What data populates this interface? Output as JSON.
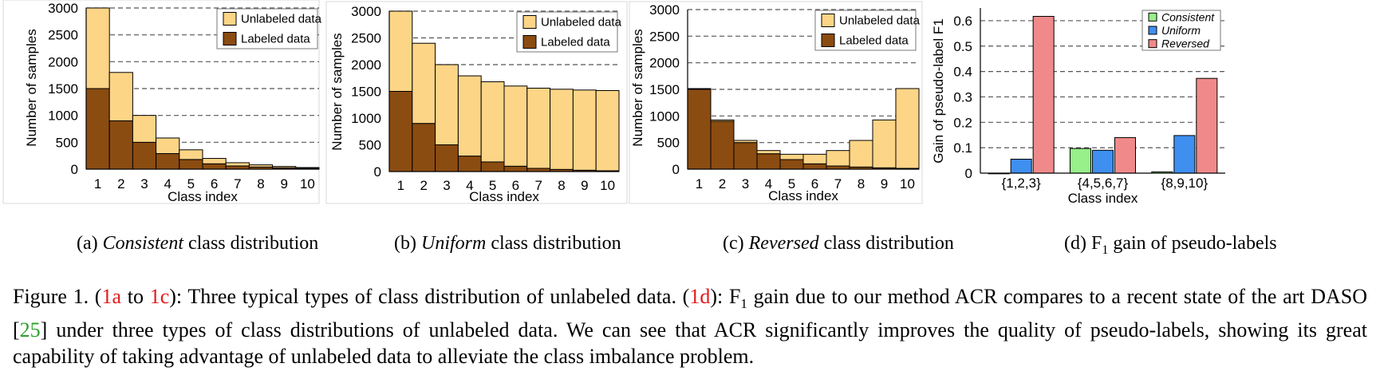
{
  "chart_data": [
    {
      "id": "a",
      "type": "bar",
      "stacked": true,
      "categories": [
        "1",
        "2",
        "3",
        "4",
        "5",
        "6",
        "7",
        "8",
        "9",
        "10"
      ],
      "series": [
        {
          "name": "Labeled data",
          "values": [
            1500,
            900,
            500,
            290,
            180,
            100,
            60,
            40,
            25,
            15
          ]
        },
        {
          "name": "Unlabeled data",
          "values": [
            1500,
            900,
            500,
            290,
            180,
            100,
            60,
            40,
            25,
            15
          ]
        }
      ],
      "xlabel": "Class index",
      "ylabel": "Number of samples",
      "ylim": [
        0,
        3000
      ],
      "yticks": [
        0,
        500,
        1000,
        1500,
        2000,
        2500,
        3000
      ],
      "grid": true,
      "legend": "top-right",
      "colors": {
        "Labeled data": "#8b4c11",
        "Unlabeled data": "#fdd587"
      },
      "caption_label": "(a)",
      "caption_italic": "Consistent",
      "caption_rest": "class distribution"
    },
    {
      "id": "b",
      "type": "bar",
      "stacked": true,
      "categories": [
        "1",
        "2",
        "3",
        "4",
        "5",
        "6",
        "7",
        "8",
        "9",
        "10"
      ],
      "series": [
        {
          "name": "Labeled data",
          "values": [
            1500,
            900,
            500,
            290,
            180,
            100,
            60,
            40,
            25,
            15
          ]
        },
        {
          "name": "Unlabeled data",
          "values": [
            1500,
            1500,
            1500,
            1500,
            1500,
            1500,
            1500,
            1500,
            1500,
            1500
          ]
        }
      ],
      "xlabel": "Class index",
      "ylabel": "Number of samples",
      "ylim": [
        0,
        3000
      ],
      "yticks": [
        0,
        500,
        1000,
        1500,
        2000,
        2500,
        3000
      ],
      "grid": true,
      "legend": "top-right",
      "colors": {
        "Labeled data": "#8b4c11",
        "Unlabeled data": "#fdd587"
      },
      "caption_label": "(b)",
      "caption_italic": "Uniform",
      "caption_rest": "class distribution"
    },
    {
      "id": "c",
      "type": "bar",
      "stacked": true,
      "categories": [
        "1",
        "2",
        "3",
        "4",
        "5",
        "6",
        "7",
        "8",
        "9",
        "10"
      ],
      "series": [
        {
          "name": "Labeled data",
          "values": [
            1500,
            900,
            500,
            290,
            180,
            100,
            60,
            40,
            25,
            15
          ]
        },
        {
          "name": "Unlabeled data",
          "values": [
            15,
            25,
            40,
            60,
            100,
            180,
            290,
            500,
            900,
            1500
          ]
        }
      ],
      "xlabel": "Class index",
      "ylabel": "Number of samples",
      "ylim": [
        0,
        3000
      ],
      "yticks": [
        0,
        500,
        1000,
        1500,
        2000,
        2500,
        3000
      ],
      "grid": true,
      "legend": "top-right",
      "colors": {
        "Labeled data": "#8b4c11",
        "Unlabeled data": "#fdd587"
      },
      "caption_label": "(c)",
      "caption_italic": "Reversed",
      "caption_rest": "class distribution"
    },
    {
      "id": "d",
      "type": "bar",
      "stacked": false,
      "categories": [
        "{1,2,3}",
        "{4,5,6,7}",
        "{8,9,10}"
      ],
      "series": [
        {
          "name": "Consistent",
          "values": [
            0.0,
            0.097,
            0.005
          ]
        },
        {
          "name": "Uniform",
          "values": [
            0.055,
            0.09,
            0.148
          ]
        },
        {
          "name": "Reversed",
          "values": [
            0.617,
            0.14,
            0.373
          ]
        }
      ],
      "xlabel": "Class index",
      "ylabel": "Gain of pseudo-label F1",
      "ylim": [
        0,
        0.65
      ],
      "yticks": [
        0,
        0.1,
        0.2,
        0.3,
        0.4,
        0.5,
        0.6
      ],
      "ytick_labels": [
        "0",
        "0.1",
        "0.2",
        "0.3",
        "0.4",
        "0.5",
        "0.6"
      ],
      "grid": true,
      "legend": "top-right",
      "colors": {
        "Consistent": "#98f08a",
        "Uniform": "#3f8ff0",
        "Reversed": "#f08a8a"
      },
      "caption_label": "(d) F",
      "caption_sub": "1",
      "caption_rest": "gain of pseudo-labels"
    }
  ],
  "figure_caption": {
    "part1": "Figure 1. (",
    "ref1": "1a",
    "part2": " to ",
    "ref2": "1c",
    "part3": "): Three typical types of class distribution of unlabeled data. (",
    "ref3": "1d",
    "part4": "): F",
    "sub": "1",
    "part5": " gain due to our method ACR compares to a recent state of the art DASO [",
    "ref4": "25",
    "part6": "] under three types of class distributions of unlabeled data. We can see that ACR significantly improves the quality of pseudo-labels, showing its great capability of taking advantage of unlabeled data to alleviate the class imbalance problem."
  }
}
